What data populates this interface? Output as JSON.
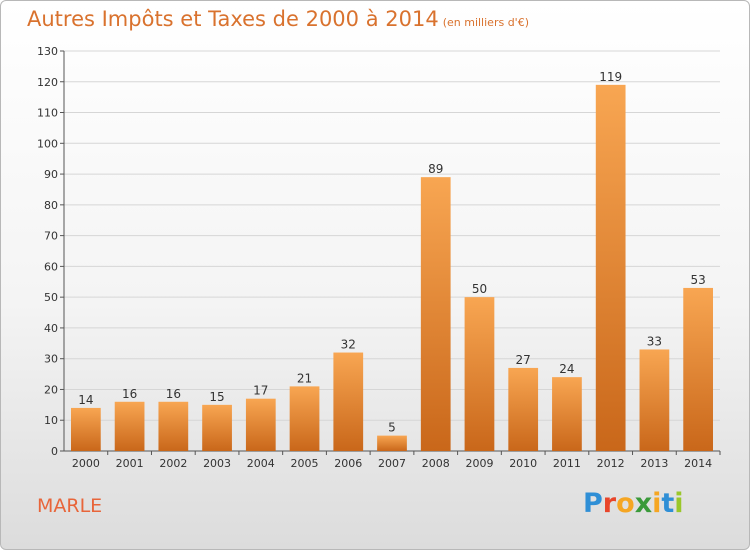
{
  "title": "Autres Impôts et Taxes de 2000 à 2014",
  "subtitle": "(en milliers d'€)",
  "place": "MARLE",
  "logo": {
    "letters": [
      "P",
      "r",
      "o",
      "x",
      "i",
      "t",
      "i"
    ],
    "colors": [
      "#2f8fd6",
      "#e8452a",
      "#f5a623",
      "#3a9a3a",
      "#f5a623",
      "#2f8fd6",
      "#9ac72a"
    ]
  },
  "chart_data": {
    "type": "bar",
    "title": "Autres Impôts et Taxes de 2000 à 2014",
    "categories": [
      "2000",
      "2001",
      "2002",
      "2003",
      "2004",
      "2005",
      "2006",
      "2007",
      "2008",
      "2009",
      "2010",
      "2011",
      "2012",
      "2013",
      "2014"
    ],
    "values": [
      14,
      16,
      16,
      15,
      17,
      21,
      32,
      5,
      89,
      50,
      27,
      24,
      119,
      33,
      53
    ],
    "ylim": [
      0,
      130
    ],
    "yticks": [
      0,
      10,
      20,
      30,
      40,
      50,
      60,
      70,
      80,
      90,
      100,
      110,
      120,
      130
    ],
    "grid": true,
    "bar_color": "#f0923a"
  }
}
